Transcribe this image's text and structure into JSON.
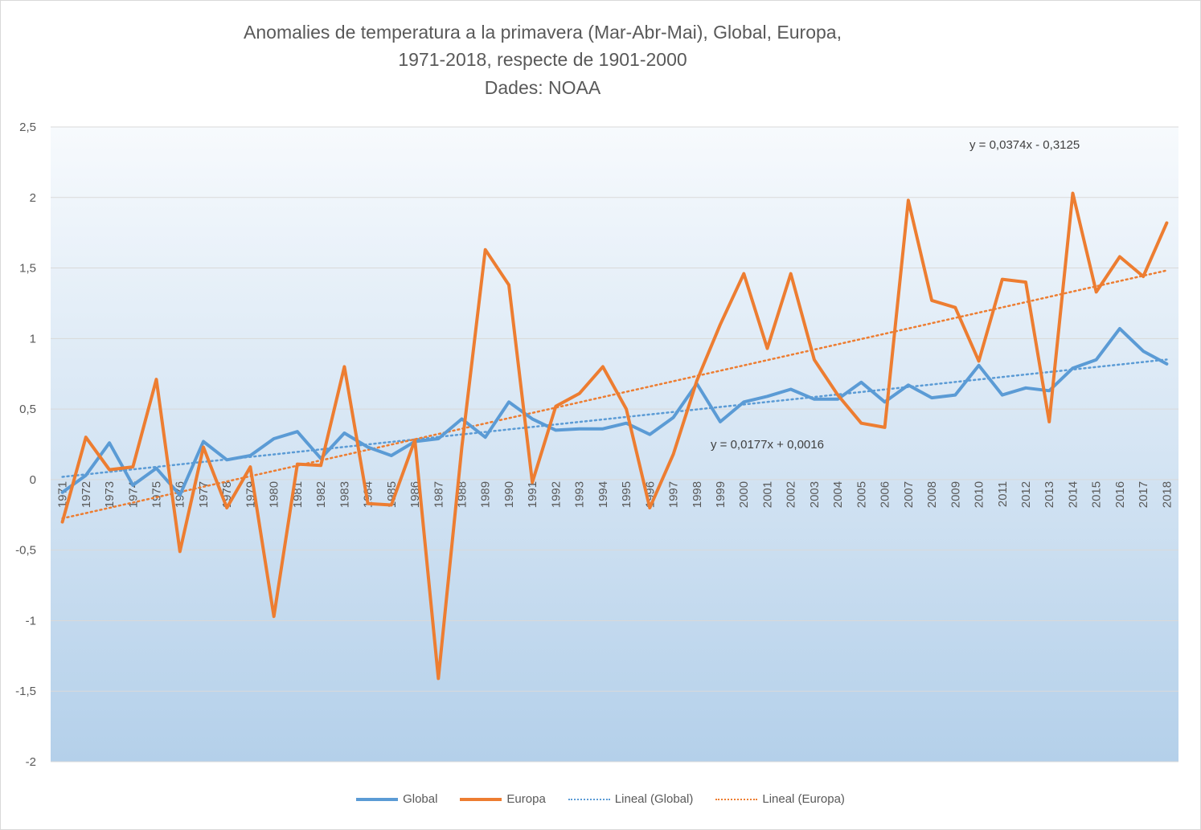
{
  "chart": {
    "title_lines": [
      "Anomalies de temperatura a la primavera (Mar-Abr-Mai), Global, Europa,",
      "1971-2018, respecte de 1901-2000",
      "Dades: NOAA"
    ]
  },
  "chart_data": {
    "type": "line",
    "title": "Anomalies de temperatura a la primavera (Mar-Abr-Mai), Global, Europa, 1971-2018, respecte de 1901-2000",
    "subtitle": "Dades: NOAA",
    "xlabel": "",
    "ylabel": "",
    "ylim": [
      -2,
      2.5
    ],
    "yticks": [
      "2,5",
      "2",
      "1,5",
      "1",
      "0,5",
      "0",
      "-0,5",
      "-1",
      "-1,5",
      "-2"
    ],
    "ytick_values": [
      2.5,
      2,
      1.5,
      1,
      0.5,
      0,
      -0.5,
      -1,
      -1.5,
      -2
    ],
    "grid": true,
    "legend_position": "bottom",
    "categories": [
      "1971",
      "1972",
      "1973",
      "1974",
      "1975",
      "1976",
      "1977",
      "1978",
      "1979",
      "1980",
      "1981",
      "1982",
      "1983",
      "1984",
      "1985",
      "1986",
      "1987",
      "1988",
      "1989",
      "1990",
      "1991",
      "1992",
      "1993",
      "1994",
      "1995",
      "1996",
      "1997",
      "1998",
      "1999",
      "2000",
      "2001",
      "2002",
      "2003",
      "2004",
      "2005",
      "2006",
      "2007",
      "2008",
      "2009",
      "2010",
      "2011",
      "2012",
      "2013",
      "2014",
      "2015",
      "2016",
      "2017",
      "2018"
    ],
    "series": [
      {
        "name": "Global",
        "color": "#5b9bd5",
        "values": [
          -0.09,
          0.03,
          0.26,
          -0.04,
          0.08,
          -0.11,
          0.27,
          0.14,
          0.17,
          0.29,
          0.34,
          0.15,
          0.33,
          0.23,
          0.17,
          0.27,
          0.29,
          0.43,
          0.3,
          0.55,
          0.43,
          0.35,
          0.36,
          0.36,
          0.4,
          0.32,
          0.44,
          0.68,
          0.41,
          0.55,
          0.59,
          0.64,
          0.57,
          0.57,
          0.69,
          0.55,
          0.67,
          0.58,
          0.6,
          0.81,
          0.6,
          0.65,
          0.63,
          0.79,
          0.85,
          1.07,
          0.91,
          0.82
        ]
      },
      {
        "name": "Europa",
        "color": "#ed7d31",
        "values": [
          -0.3,
          0.3,
          0.07,
          0.09,
          0.71,
          -0.51,
          0.23,
          -0.2,
          0.09,
          -0.97,
          0.11,
          0.1,
          0.8,
          -0.17,
          -0.18,
          0.28,
          -1.41,
          0.23,
          1.63,
          1.38,
          -0.02,
          0.52,
          0.61,
          0.8,
          0.5,
          -0.2,
          0.18,
          0.7,
          1.1,
          1.46,
          0.93,
          1.46,
          0.85,
          0.6,
          0.4,
          0.37,
          1.98,
          1.27,
          1.22,
          0.84,
          1.42,
          1.4,
          0.41,
          2.03,
          1.33,
          1.58,
          1.44,
          1.82
        ]
      }
    ],
    "trendlines": [
      {
        "name": "Lineal  (Global)",
        "color": "#5b9bd5",
        "slope": 0.0177,
        "intercept": 0.0016,
        "label": "y = 0,0177x + 0,0016"
      },
      {
        "name": "Lineal  (Europa)",
        "color": "#ed7d31",
        "slope": 0.0374,
        "intercept": -0.3125,
        "label": "y = 0,0374x - 0,3125"
      }
    ]
  },
  "legend": [
    {
      "label": "Global",
      "color": "#5b9bd5",
      "style": "solid"
    },
    {
      "label": "Europa",
      "color": "#ed7d31",
      "style": "solid"
    },
    {
      "label": "Lineal  (Global)",
      "color": "#5b9bd5",
      "style": "dotted"
    },
    {
      "label": "Lineal  (Europa)",
      "color": "#ed7d31",
      "style": "dotted"
    }
  ]
}
